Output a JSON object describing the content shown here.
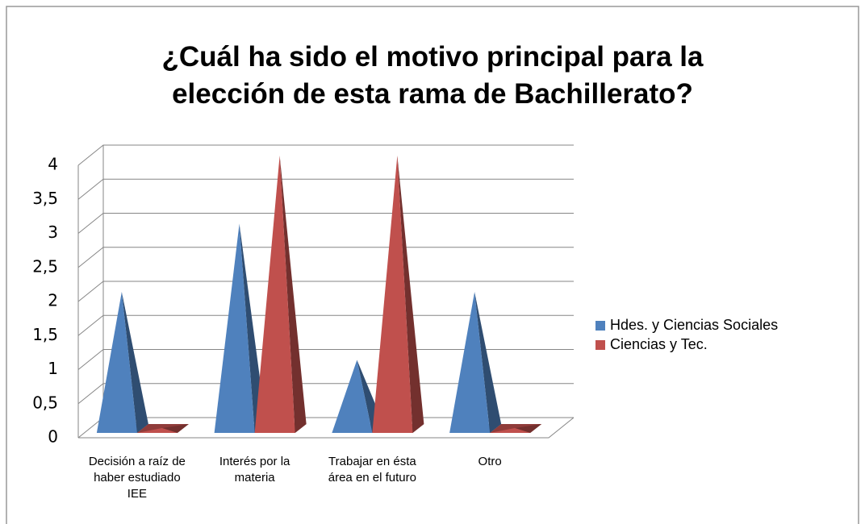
{
  "chart_data": {
    "type": "pyramid3d",
    "title": "¿Cuál ha sido el motivo principal para la elección de esta rama de Bachillerato?",
    "categories": [
      "Decisión a raíz de haber estudiado IEE",
      "Interés por la materia",
      "Trabajar en ésta área en el futuro",
      "Otro"
    ],
    "series": [
      {
        "name": "Hdes. y Ciencias Sociales",
        "color": "#4f81bd",
        "values": [
          2,
          3,
          1,
          2
        ]
      },
      {
        "name": "Ciencias y Tec.",
        "color": "#c0504d",
        "values": [
          0,
          4,
          4,
          0
        ]
      }
    ],
    "ylim": [
      0,
      4
    ],
    "yticks": [
      0,
      {
        "value": 0.5,
        "label": "0,5"
      },
      1,
      {
        "value": 1.5,
        "label": "1,5"
      },
      2,
      {
        "value": 2.5,
        "label": "2,5"
      },
      3,
      {
        "value": 3.5,
        "label": "3,5"
      },
      4
    ],
    "grid": true,
    "legend": "right"
  }
}
